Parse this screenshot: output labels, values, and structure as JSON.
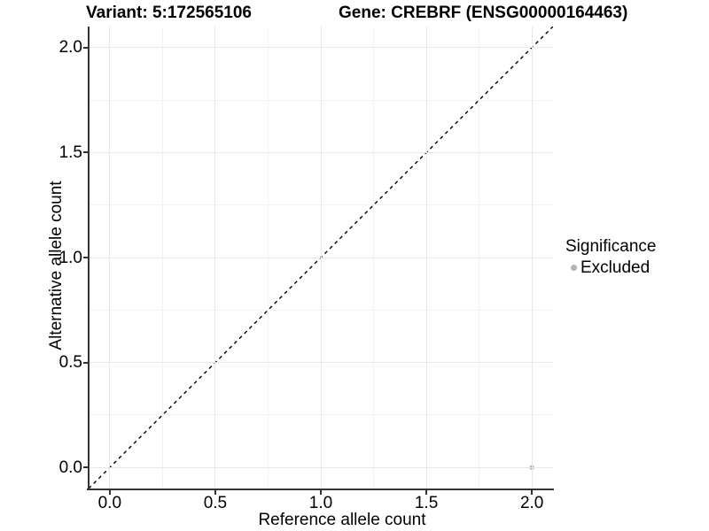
{
  "titles": {
    "variant": "Variant: 5:172565106",
    "gene": "Gene: CREBRF (ENSG00000164463)"
  },
  "chart_data": {
    "type": "scatter",
    "title": "Variant: 5:172565106 | Gene: CREBRF (ENSG00000164463)",
    "xlabel": "Reference allele count",
    "ylabel": "Alternative allele count",
    "xlim": [
      -0.1,
      2.1
    ],
    "ylim": [
      -0.1,
      2.1
    ],
    "x_ticks": [
      {
        "value": 0.0,
        "label": "0.0"
      },
      {
        "value": 0.5,
        "label": "0.5"
      },
      {
        "value": 1.0,
        "label": "1.0"
      },
      {
        "value": 1.5,
        "label": "1.5"
      },
      {
        "value": 2.0,
        "label": "2.0"
      }
    ],
    "y_ticks": [
      {
        "value": 0.0,
        "label": "0.0"
      },
      {
        "value": 0.5,
        "label": "0.5"
      },
      {
        "value": 1.0,
        "label": "1.0"
      },
      {
        "value": 1.5,
        "label": "1.5"
      },
      {
        "value": 2.0,
        "label": "2.0"
      }
    ],
    "grid": {
      "major": true,
      "minor": true
    },
    "reference_line": {
      "type": "identity",
      "slope": 1,
      "intercept": 0,
      "style": "dashed",
      "color": "#000000"
    },
    "series": [
      {
        "name": "Excluded",
        "color": "#b4b4b4",
        "points": [
          {
            "x": 2.0,
            "y": 0.0
          }
        ]
      }
    ],
    "legend": {
      "title": "Significance",
      "position": "right",
      "entries": [
        {
          "label": "Excluded",
          "color": "#b4b4b4"
        }
      ]
    }
  },
  "colors": {
    "axis_line": "#333333",
    "tick_mark": "#333333",
    "grid_major": "#e8e8e8",
    "grid_minor": "#f3f3f3",
    "background": "#ffffff"
  }
}
